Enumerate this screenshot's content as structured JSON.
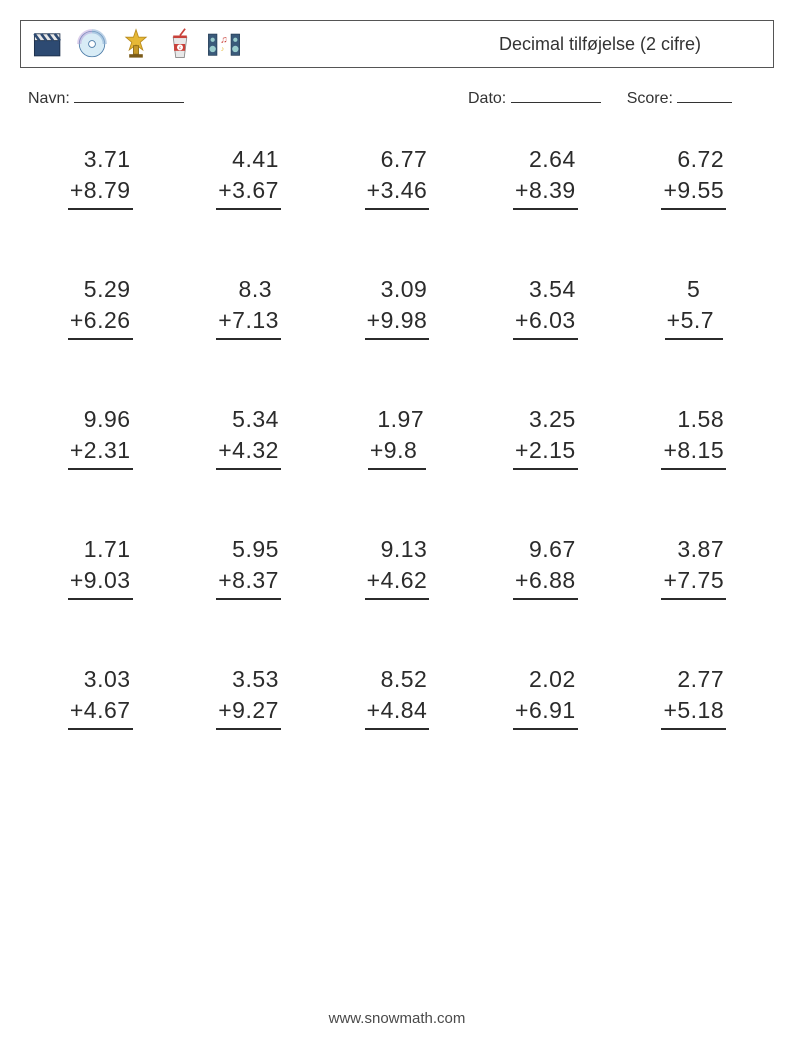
{
  "header": {
    "title": "Decimal tilføjelse (2 cifre)",
    "icons": [
      "clapperboard-icon",
      "cd-icon",
      "trophy-icon",
      "soda-cup-icon",
      "speakers-icon"
    ]
  },
  "labels": {
    "name": "Navn:",
    "date": "Dato:",
    "score": "Score:"
  },
  "worksheet": {
    "type": "arithmetic-grid",
    "operation": "+",
    "rows": 5,
    "cols": 5,
    "font_size_pt": 17,
    "text_color": "#2b2b2b",
    "underline_color": "#2b2b2b",
    "background_color": "#ffffff",
    "problems": [
      {
        "a": "3.71",
        "b": "8.79"
      },
      {
        "a": "4.41",
        "b": "3.67"
      },
      {
        "a": "6.77",
        "b": "3.46"
      },
      {
        "a": "2.64",
        "b": "8.39"
      },
      {
        "a": "6.72",
        "b": "9.55"
      },
      {
        "a": "5.29",
        "b": "6.26"
      },
      {
        "a": "8.3",
        "b": "7.13"
      },
      {
        "a": "3.09",
        "b": "9.98"
      },
      {
        "a": "3.54",
        "b": "6.03"
      },
      {
        "a": "5",
        "b": "5.7"
      },
      {
        "a": "9.96",
        "b": "2.31"
      },
      {
        "a": "5.34",
        "b": "4.32"
      },
      {
        "a": "1.97",
        "b": "9.8"
      },
      {
        "a": "3.25",
        "b": "2.15"
      },
      {
        "a": "1.58",
        "b": "8.15"
      },
      {
        "a": "1.71",
        "b": "9.03"
      },
      {
        "a": "5.95",
        "b": "8.37"
      },
      {
        "a": "9.13",
        "b": "4.62"
      },
      {
        "a": "9.67",
        "b": "6.88"
      },
      {
        "a": "3.87",
        "b": "7.75"
      },
      {
        "a": "3.03",
        "b": "4.67"
      },
      {
        "a": "3.53",
        "b": "9.27"
      },
      {
        "a": "8.52",
        "b": "4.84"
      },
      {
        "a": "2.02",
        "b": "6.91"
      },
      {
        "a": "2.77",
        "b": "5.18"
      }
    ]
  },
  "footer": {
    "text": "www.snowmath.com"
  }
}
